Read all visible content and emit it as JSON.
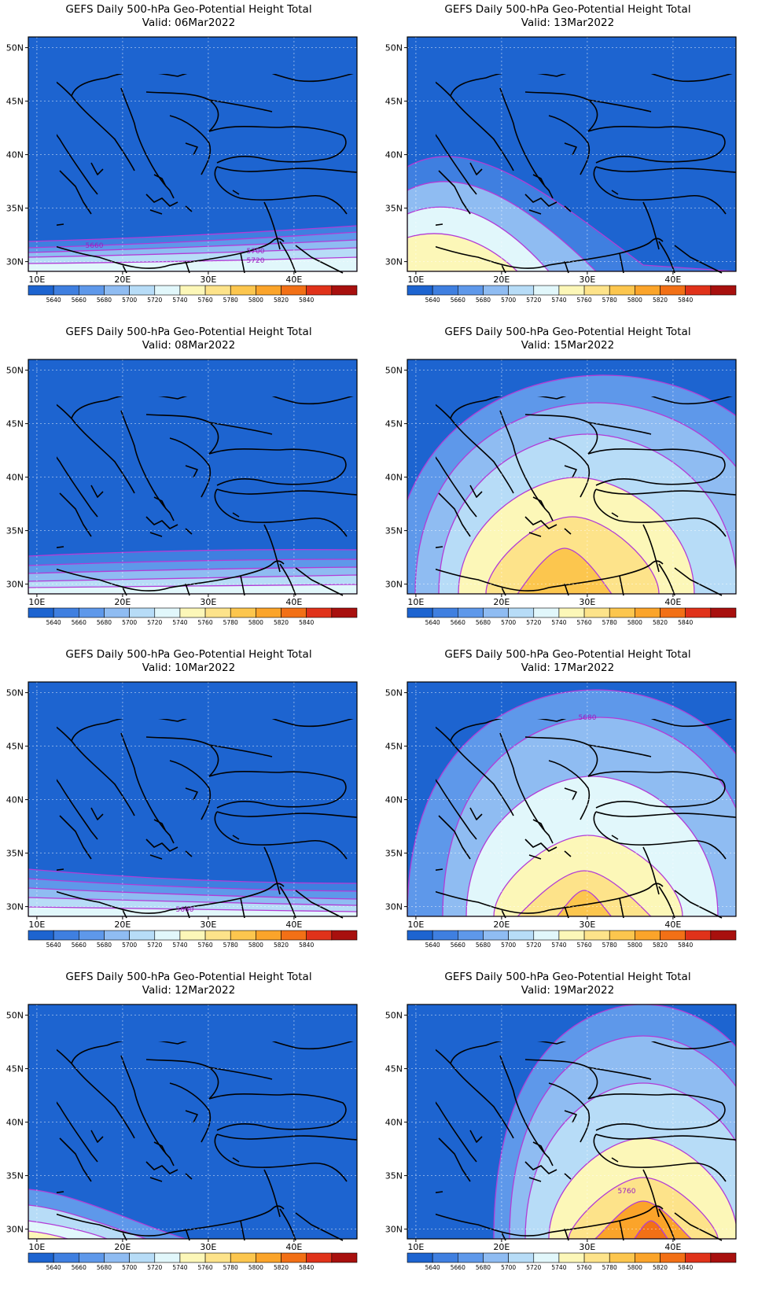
{
  "title": "GEFS Daily 500-hPa Geo-Potential Height Total",
  "valid_prefix": "Valid: ",
  "axes": {
    "lat_labels": [
      "50N",
      "45N",
      "40N",
      "35N",
      "30N"
    ],
    "lon_labels": [
      "10E",
      "20E",
      "30E",
      "40E"
    ]
  },
  "legend": {
    "values": [
      "5640",
      "5660",
      "5680",
      "5700",
      "5720",
      "5740",
      "5760",
      "5780",
      "5800",
      "5820",
      "5840"
    ],
    "colors": [
      "#1d64d0",
      "#3f7fe0",
      "#5e98ea",
      "#8fbcf2",
      "#b7dcf7",
      "#e1f7fb",
      "#fcf7b8",
      "#fde38a",
      "#fcc64e",
      "#fba42a",
      "#f27016",
      "#e0321a",
      "#a8100e"
    ]
  },
  "contour_line_color": "#b23cd6",
  "panels": [
    {
      "valid": "06Mar2022",
      "contour_labels": [
        "5660",
        "5700",
        "5720"
      ]
    },
    {
      "valid": "13Mar2022",
      "contour_labels": []
    },
    {
      "valid": "08Mar2022",
      "contour_labels": []
    },
    {
      "valid": "15Mar2022",
      "contour_labels": []
    },
    {
      "valid": "10Mar2022",
      "contour_labels": [
        "5660"
      ]
    },
    {
      "valid": "17Mar2022",
      "contour_labels": [
        "5680"
      ]
    },
    {
      "valid": "12Mar2022",
      "contour_labels": []
    },
    {
      "valid": "19Mar2022",
      "contour_labels": [
        "5760"
      ]
    }
  ]
}
